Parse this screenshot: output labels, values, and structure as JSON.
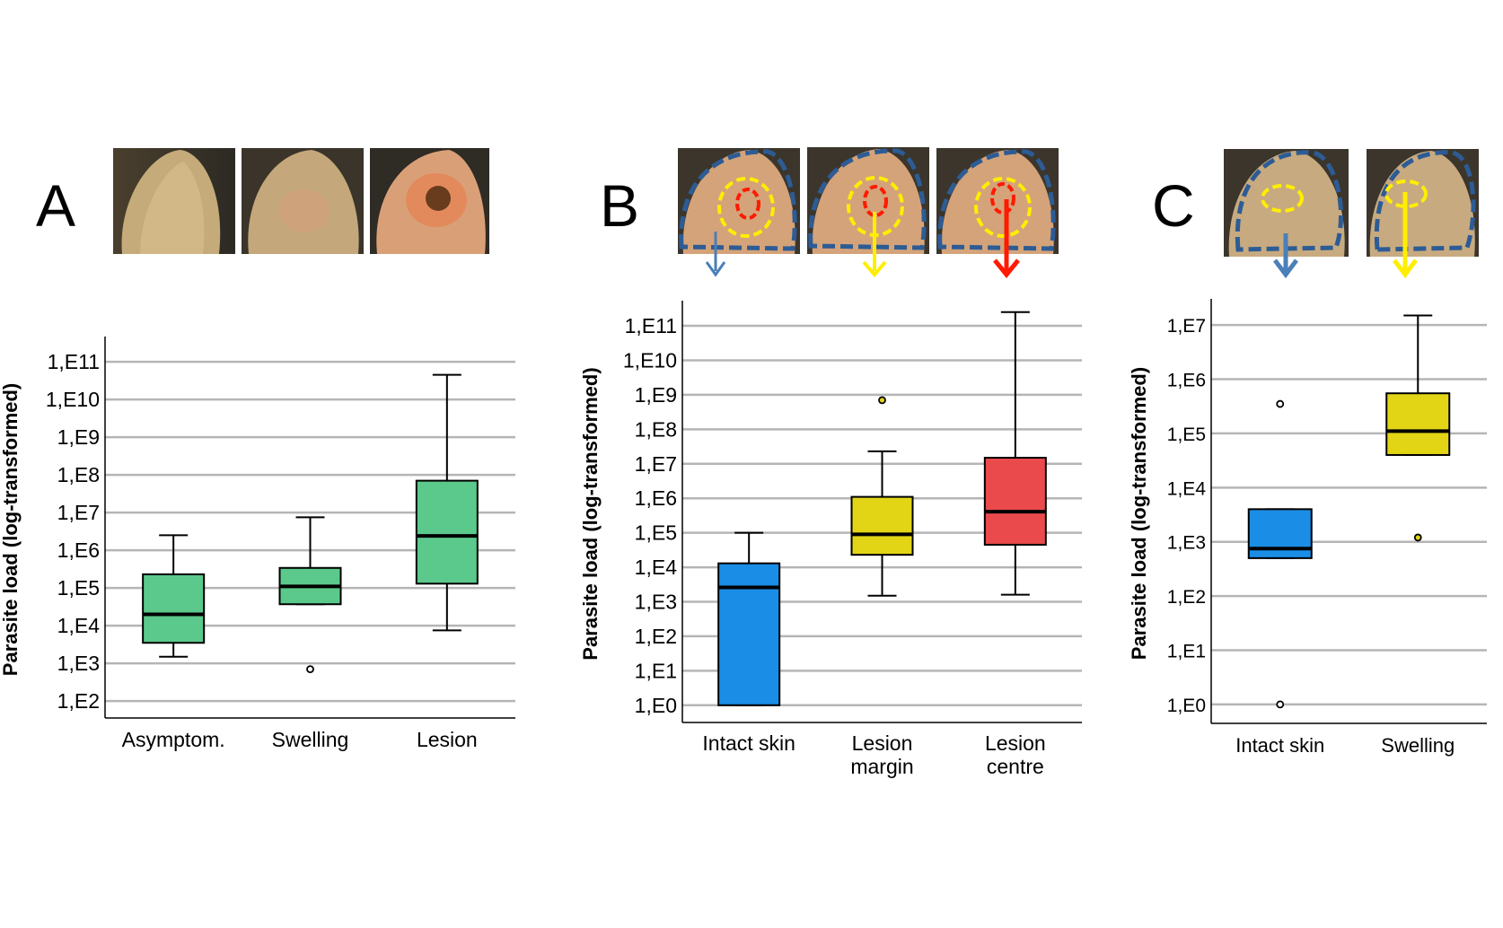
{
  "panels": [
    {
      "letter": "A",
      "photo_count": 3
    },
    {
      "letter": "B",
      "photo_count": 3
    },
    {
      "letter": "C",
      "photo_count": 2
    }
  ],
  "chart_data": [
    {
      "type": "boxplot",
      "panel": "A",
      "ylabel": "Parasite load (log-transformed)",
      "xlabel": "",
      "yscale": "log10",
      "yticks": [
        "1,E2",
        "1,E3",
        "1,E4",
        "1,E5",
        "1,E6",
        "1,E7",
        "1,E8",
        "1,E9",
        "1,E10",
        "1,E11"
      ],
      "ylim_log": [
        1.55,
        11.55
      ],
      "grid": true,
      "color": "#5bc98c",
      "categories": [
        "Asymptom.",
        "Swelling",
        "Lesion"
      ],
      "boxes": [
        {
          "category": "Asymptom.",
          "whisker_low": 1500.0,
          "q1": 3500.0,
          "median": 20000.0,
          "q3": 230000.0,
          "whisker_high": 2500000.0,
          "outliers": []
        },
        {
          "category": "Swelling",
          "whisker_low": 37000.0,
          "q1": 37000.0,
          "median": 110000.0,
          "q3": 340000.0,
          "whisker_high": 7500000.0,
          "outliers": [
            700.0
          ]
        },
        {
          "category": "Lesion",
          "whisker_low": 7500.0,
          "q1": 130000.0,
          "median": 2400000.0,
          "q3": 70000000.0,
          "whisker_high": 45000000000.0,
          "outliers": []
        }
      ]
    },
    {
      "type": "boxplot",
      "panel": "B",
      "ylabel": "Parasite load (log-transformed)",
      "xlabel": "",
      "yscale": "log10",
      "yticks": [
        "1,E0",
        "1,E1",
        "1,E2",
        "1,E3",
        "1,E4",
        "1,E5",
        "1,E6",
        "1,E7",
        "1,E8",
        "1,E9",
        "1,E10",
        "1,E11"
      ],
      "ylim_log": [
        -0.5,
        11.6
      ],
      "grid": true,
      "categories": [
        "Intact skin",
        "Lesion margin",
        "Lesion centre"
      ],
      "category_lines": [
        [
          "Intact skin"
        ],
        [
          "Lesion",
          "margin"
        ],
        [
          "Lesion",
          "centre"
        ]
      ],
      "boxes": [
        {
          "category": "Intact skin",
          "color": "#1a8de6",
          "whisker_low": 1,
          "q1": 1,
          "median": 2600.0,
          "q3": 13000.0,
          "whisker_high": 100000.0,
          "outliers": []
        },
        {
          "category": "Lesion margin",
          "color": "#e2d516",
          "whisker_low": 1500.0,
          "q1": 23000.0,
          "median": 90000.0,
          "q3": 1100000.0,
          "whisker_high": 23000000.0,
          "outliers": [
            700000000.0
          ]
        },
        {
          "category": "Lesion centre",
          "color": "#ea4a4c",
          "whisker_low": 1600.0,
          "q1": 45000.0,
          "median": 410000.0,
          "q3": 15000000.0,
          "whisker_high": 250000000000.0,
          "outliers": []
        }
      ]
    },
    {
      "type": "boxplot",
      "panel": "C",
      "ylabel": "Parasite load (log-transformed)",
      "xlabel": "",
      "yscale": "log10",
      "yticks": [
        "1,E0",
        "1,E1",
        "1,E2",
        "1,E3",
        "1,E4",
        "1,E5",
        "1,E6",
        "1,E7"
      ],
      "ylim_log": [
        -0.35,
        7.4
      ],
      "grid": true,
      "categories": [
        "Intact skin",
        "Swelling"
      ],
      "boxes": [
        {
          "category": "Intact skin",
          "color": "#1a8de6",
          "whisker_low": 500,
          "q1": 500,
          "median": 750,
          "q3": 4000.0,
          "whisker_high": 4000.0,
          "outliers": [
            350000.0,
            1
          ]
        },
        {
          "category": "Swelling",
          "color": "#e2d516",
          "whisker_low": 40000.0,
          "q1": 40000.0,
          "median": 110000.0,
          "q3": 550000.0,
          "whisker_high": 15000000.0,
          "outliers": [
            1200.0
          ]
        }
      ]
    }
  ]
}
